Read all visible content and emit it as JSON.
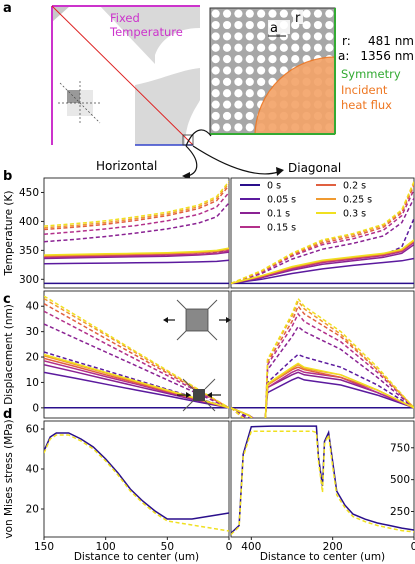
{
  "panel_labels": {
    "a": "a",
    "b": "b",
    "c": "c",
    "d": "d"
  },
  "schematic": {
    "fixed_temperature": "Fixed Temperature",
    "cell_a": "a",
    "cell_r": "r",
    "r_label": "r:",
    "r_value": "481 nm",
    "a_label": "a:",
    "a_value": "1356 nm",
    "symmetry": "Symmetry",
    "incident_heat_flux": "Incident heat flux",
    "horizontal": "Horizontal",
    "diagonal": "Diagonal",
    "colors": {
      "fixed_temperature": "#cc33cc",
      "symmetry": "#33aa33",
      "heat_flux": "#ee7722",
      "edge_blue": "#3344cc",
      "diagonal_line": "#dd2222"
    }
  },
  "legend": {
    "entries": [
      "0 s",
      "0.05 s",
      "0.1 s",
      "0.15 s",
      "0.2 s",
      "0.25 s",
      "0.3 s"
    ],
    "colors": [
      "#2a0f8c",
      "#5b1a9e",
      "#8a2293",
      "#b3308a",
      "#e06040",
      "#f09a30",
      "#f0e020"
    ]
  },
  "chart_data": [
    {
      "type": "line",
      "panel": "b-horizontal",
      "ylabel": "Temperature (K)",
      "yticks": [
        300,
        350,
        400,
        450
      ],
      "ylim": [
        285,
        475
      ],
      "xlim": [
        150,
        0
      ],
      "x": [
        150,
        125,
        100,
        75,
        50,
        25,
        10,
        0
      ],
      "series": [
        {
          "name": "0 s",
          "values": [
            293,
            293,
            293,
            293,
            293,
            293,
            293,
            293
          ]
        },
        {
          "name": "0.05 s",
          "values": [
            327,
            327.5,
            328,
            328.5,
            329,
            330,
            331,
            333
          ]
        },
        {
          "name": "0.05 s",
          "values": [
            337,
            338,
            339,
            340,
            341,
            343,
            346,
            352
          ]
        },
        {
          "name": "0.1 s",
          "values": [
            336,
            337,
            338,
            339,
            340,
            342,
            344,
            347
          ]
        },
        {
          "name": "0.1 s",
          "values": [
            365,
            369,
            374,
            380,
            387,
            397,
            408,
            432
          ]
        },
        {
          "name": "0.15 s",
          "values": [
            338,
            339,
            340,
            341,
            342,
            343,
            345,
            349
          ]
        },
        {
          "name": "0.15 s",
          "values": [
            378,
            382,
            387,
            393,
            401,
            412,
            425,
            450
          ]
        },
        {
          "name": "0.2 s",
          "values": [
            340,
            341,
            342,
            343,
            344,
            346,
            348,
            352
          ]
        },
        {
          "name": "0.2 s",
          "values": [
            386,
            390,
            395,
            402,
            410,
            422,
            436,
            462
          ]
        },
        {
          "name": "0.25 s",
          "values": [
            341,
            342,
            343,
            344,
            345,
            347,
            349,
            353
          ]
        },
        {
          "name": "0.25 s",
          "values": [
            389,
            393,
            398,
            405,
            413,
            425,
            440,
            466
          ]
        },
        {
          "name": "0.3 s",
          "values": [
            342,
            343,
            344,
            345,
            346,
            348,
            350,
            354
          ]
        },
        {
          "name": "0.3 s",
          "values": [
            392,
            396,
            401,
            408,
            416,
            428,
            443,
            469
          ]
        }
      ]
    },
    {
      "type": "line",
      "panel": "b-diagonal",
      "xlim": [
        300,
        0
      ],
      "x": [
        300,
        250,
        200,
        150,
        100,
        50,
        20,
        0
      ],
      "series": [
        {
          "name": "0 s",
          "values": [
            293,
            293,
            293,
            293,
            293,
            293,
            293,
            293
          ]
        },
        {
          "name": "0.05 s",
          "values": [
            293,
            300,
            310,
            318,
            324,
            329,
            332,
            336
          ]
        },
        {
          "name": "0.05 s",
          "values": [
            293,
            303,
            318,
            330,
            336,
            342,
            356,
            405
          ]
        },
        {
          "name": "0.1 s",
          "values": [
            293,
            303,
            316,
            326,
            332,
            338,
            345,
            360
          ]
        },
        {
          "name": "0.1 s",
          "values": [
            293,
            310,
            335,
            352,
            362,
            375,
            398,
            440
          ]
        },
        {
          "name": "0.15 s",
          "values": [
            293,
            304,
            318,
            329,
            335,
            341,
            348,
            364
          ]
        },
        {
          "name": "0.15 s",
          "values": [
            293,
            312,
            340,
            360,
            370,
            385,
            410,
            455
          ]
        },
        {
          "name": "0.2 s",
          "values": [
            293,
            305,
            320,
            331,
            337,
            343,
            350,
            366
          ]
        },
        {
          "name": "0.2 s",
          "values": [
            293,
            313,
            342,
            363,
            374,
            390,
            415,
            462
          ]
        },
        {
          "name": "0.25 s",
          "values": [
            293,
            306,
            321,
            332,
            338,
            344,
            351,
            367
          ]
        },
        {
          "name": "0.25 s",
          "values": [
            293,
            314,
            344,
            366,
            377,
            393,
            418,
            466
          ]
        },
        {
          "name": "0.3 s",
          "values": [
            293,
            306,
            322,
            333,
            339,
            345,
            352,
            368
          ]
        },
        {
          "name": "0.3 s",
          "values": [
            293,
            315,
            345,
            368,
            379,
            395,
            420,
            469
          ]
        }
      ]
    },
    {
      "type": "line",
      "panel": "c-horizontal",
      "ylabel": "Displacement (nm)",
      "yticks": [
        0,
        10,
        20,
        30,
        40
      ],
      "ylim": [
        -4,
        46
      ],
      "xlim": [
        150,
        0
      ],
      "x": [
        150,
        125,
        100,
        75,
        50,
        25,
        0
      ],
      "series": [
        {
          "name": "0 s",
          "values": [
            0,
            0,
            0,
            0,
            0,
            0,
            0
          ]
        },
        {
          "name": "0.05 s",
          "values": [
            14,
            11.7,
            9.3,
            7,
            4.7,
            2.3,
            0
          ]
        },
        {
          "name": "0.05 s",
          "values": [
            22,
            18.3,
            14.7,
            11,
            7.3,
            3.7,
            0
          ]
        },
        {
          "name": "0.1 s",
          "values": [
            17,
            14.2,
            11.3,
            8.5,
            5.7,
            2.8,
            0
          ]
        },
        {
          "name": "0.1 s",
          "values": [
            33,
            27.5,
            22,
            16.5,
            11,
            5.5,
            0
          ]
        },
        {
          "name": "0.15 s",
          "values": [
            18.5,
            15.4,
            12.3,
            9.3,
            6.2,
            3.1,
            0
          ]
        },
        {
          "name": "0.15 s",
          "values": [
            38,
            31.7,
            25.3,
            19,
            12.7,
            6.3,
            0
          ]
        },
        {
          "name": "0.2 s",
          "values": [
            19.5,
            16.3,
            13,
            9.8,
            6.5,
            3.3,
            0
          ]
        },
        {
          "name": "0.2 s",
          "values": [
            41,
            34.2,
            27.3,
            20.5,
            13.7,
            6.8,
            0
          ]
        },
        {
          "name": "0.25 s",
          "values": [
            20.5,
            17.1,
            13.7,
            10.3,
            6.8,
            3.4,
            0
          ]
        },
        {
          "name": "0.25 s",
          "values": [
            43,
            35.8,
            28.7,
            21.5,
            14.3,
            7.2,
            0
          ]
        },
        {
          "name": "0.3 s",
          "values": [
            21,
            17.5,
            14,
            10.5,
            7,
            3.5,
            0
          ]
        },
        {
          "name": "0.3 s",
          "values": [
            44,
            36.7,
            29.3,
            22,
            14.7,
            7.3,
            0
          ]
        }
      ]
    },
    {
      "type": "line",
      "panel": "c-diagonal",
      "xlim": [
        300,
        0
      ],
      "x": [
        300,
        270,
        245,
        240,
        200,
        190,
        180,
        120,
        60,
        0
      ],
      "series": [
        {
          "name": "0 s",
          "values": [
            0,
            0,
            0,
            0,
            0,
            0,
            0,
            0,
            0,
            0
          ]
        },
        {
          "name": "0.05 s",
          "values": [
            0,
            -3,
            -7,
            6,
            11,
            12,
            11,
            9,
            5,
            0
          ]
        },
        {
          "name": "0.05 s",
          "values": [
            0,
            -4,
            -10,
            10,
            19,
            21,
            20,
            16,
            9,
            0
          ]
        },
        {
          "name": "0.1 s",
          "values": [
            0,
            -3,
            -8,
            8,
            13,
            14,
            13,
            11,
            6,
            0
          ]
        },
        {
          "name": "0.1 s",
          "values": [
            0,
            -5,
            -12,
            15,
            28,
            32,
            30,
            23,
            12,
            0
          ]
        },
        {
          "name": "0.15 s",
          "values": [
            0,
            -3,
            -8,
            8,
            14,
            15,
            14,
            12,
            6,
            0
          ]
        },
        {
          "name": "0.15 s",
          "values": [
            0,
            -6,
            -13,
            17,
            32,
            37,
            34,
            26,
            14,
            0
          ]
        },
        {
          "name": "0.2 s",
          "values": [
            0,
            -3,
            -9,
            9,
            15,
            16,
            15,
            12,
            7,
            0
          ]
        },
        {
          "name": "0.2 s",
          "values": [
            0,
            -6,
            -14,
            18,
            34,
            40,
            37,
            28,
            15,
            0
          ]
        },
        {
          "name": "0.25 s",
          "values": [
            0,
            -3,
            -9,
            9,
            15.5,
            17,
            15.5,
            13,
            7,
            0
          ]
        },
        {
          "name": "0.25 s",
          "values": [
            0,
            -6,
            -14,
            19,
            36,
            42,
            39,
            29,
            15,
            0
          ]
        },
        {
          "name": "0.3 s",
          "values": [
            0,
            -3,
            -9,
            9.5,
            16,
            17.5,
            16,
            13,
            7,
            0
          ]
        },
        {
          "name": "0.3 s",
          "values": [
            0,
            -6,
            -14,
            19,
            37,
            43,
            40,
            30,
            16,
            0
          ]
        }
      ]
    },
    {
      "type": "line",
      "panel": "d-horizontal",
      "ylabel": "von Mises stress (MPa)",
      "yticks": [
        20,
        40,
        60
      ],
      "ylim": [
        6,
        64
      ],
      "xlabel": "Distance to center (um)",
      "xticks": [
        150,
        100,
        50,
        0
      ],
      "xlim": [
        150,
        0
      ],
      "x": [
        150,
        145,
        140,
        130,
        120,
        110,
        100,
        90,
        80,
        70,
        60,
        50,
        40,
        30,
        20,
        10,
        0
      ],
      "series": [
        {
          "name": "0 s",
          "values": [
            49,
            56,
            58,
            58,
            55,
            51,
            45,
            38,
            30,
            24,
            19,
            15,
            15,
            15,
            16,
            17,
            18
          ]
        },
        {
          "name": "0.3 s",
          "values": [
            48,
            55,
            57,
            57,
            54,
            50,
            44,
            37,
            29,
            23,
            18,
            14,
            13,
            12,
            11,
            10,
            9
          ]
        }
      ]
    },
    {
      "type": "line",
      "panel": "d-diagonal",
      "yticks": [
        250,
        500,
        750
      ],
      "ylim": [
        50,
        960
      ],
      "xlabel": "Distance to center (um)",
      "xticks": [
        400,
        200,
        0
      ],
      "xlim": [
        450,
        0
      ],
      "x": [
        450,
        430,
        420,
        400,
        350,
        300,
        250,
        240,
        235,
        225,
        220,
        210,
        200,
        190,
        170,
        150,
        120,
        90,
        60,
        30,
        0
      ],
      "series": [
        {
          "name": "0 s",
          "values": [
            80,
            140,
            700,
            915,
            920,
            920,
            920,
            920,
            680,
            450,
            800,
            870,
            640,
            410,
            300,
            230,
            190,
            160,
            140,
            120,
            105
          ]
        },
        {
          "name": "0.3 s",
          "values": [
            70,
            130,
            680,
            880,
            880,
            880,
            880,
            870,
            650,
            400,
            780,
            850,
            600,
            380,
            280,
            210,
            170,
            140,
            120,
            100,
            90
          ]
        }
      ]
    }
  ]
}
